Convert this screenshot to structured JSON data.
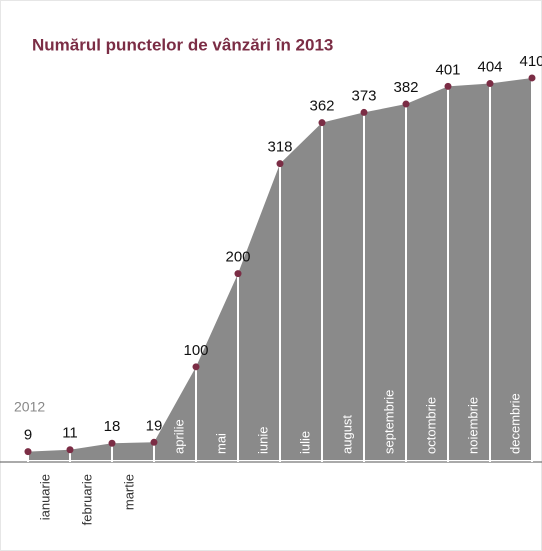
{
  "chart_data": {
    "type": "area",
    "title": "Numărul punctelor de vânzări în 2013",
    "categories": [
      "2012",
      "ianuarie",
      "februarie",
      "martie",
      "aprilie",
      "mai",
      "iunie",
      "iulie",
      "august",
      "septembrie",
      "octombrie",
      "noiembrie",
      "decembrie"
    ],
    "values": [
      9,
      11,
      18,
      19,
      100,
      200,
      318,
      362,
      373,
      382,
      401,
      404,
      410
    ],
    "color": "#8a8a8a",
    "point_color": "#7b2d45",
    "ylim": [
      0,
      440
    ]
  }
}
